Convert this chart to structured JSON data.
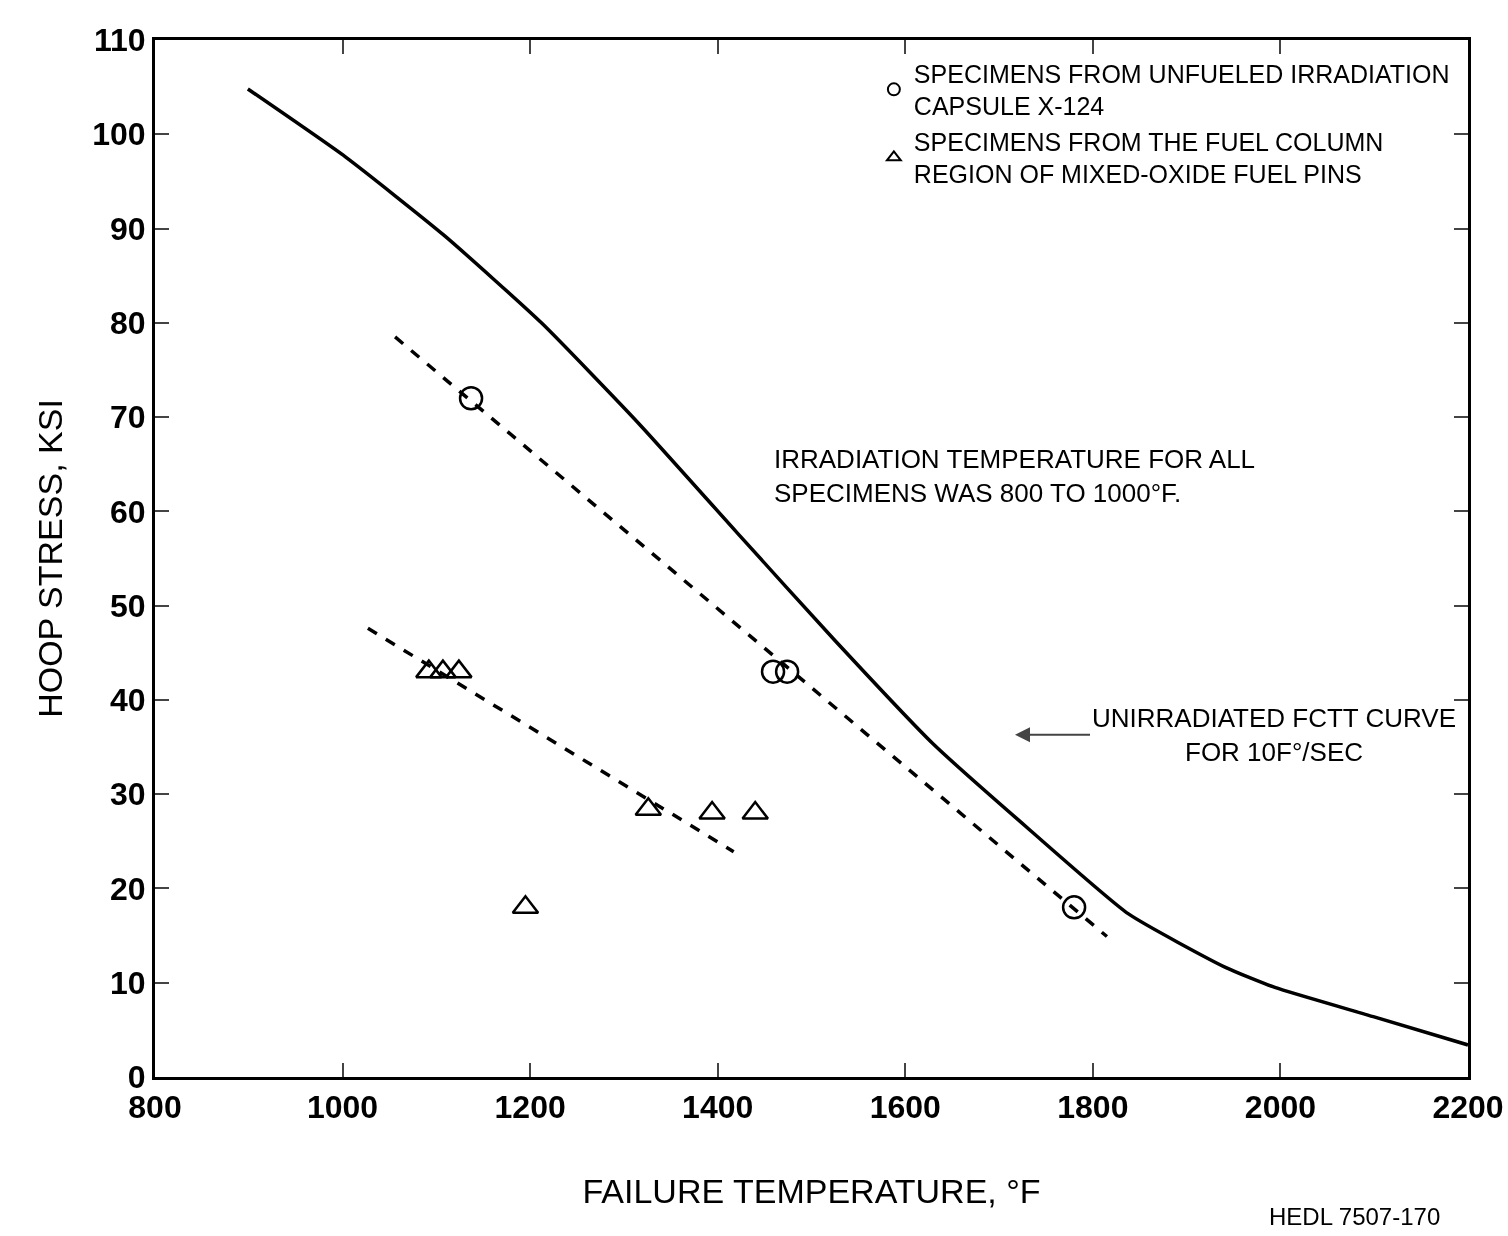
{
  "chart_data": {
    "type": "scatter",
    "xlabel": "FAILURE TEMPERATURE, °F",
    "ylabel": "HOOP STRESS, KSI",
    "xlim": [
      800,
      2200
    ],
    "xticks": [
      800,
      1000,
      1200,
      1400,
      1600,
      1800,
      2000,
      2200
    ],
    "ylim": [
      0,
      110
    ],
    "yticks": [
      0,
      10,
      20,
      30,
      40,
      50,
      60,
      70,
      80,
      90,
      100,
      110
    ],
    "grid": false,
    "legend": "top right",
    "series": [
      {
        "name": "SPECIMENS FROM UNFUELED IRRADIATION CAPSULE X-124",
        "type": "scatter",
        "marker": "circle",
        "color": "#000000",
        "x": [
          1137,
          1459,
          1474,
          1780
        ],
        "values": [
          72,
          43,
          43,
          18
        ]
      },
      {
        "name": "SPECIMENS FROM THE FUEL COLUMN REGION OF MIXED-OXIDE FUEL PINS",
        "type": "scatter",
        "marker": "triangle",
        "color": "#000000",
        "x": [
          1092,
          1107,
          1124,
          1195,
          1326,
          1394,
          1440
        ],
        "values": [
          43,
          43,
          43,
          18,
          28.4,
          28,
          28
        ]
      },
      {
        "type": "line",
        "line_style": "dashed",
        "color": "#000000",
        "x": [
          1056,
          1815
        ],
        "values": [
          78.5,
          14.9
        ]
      },
      {
        "type": "line",
        "line_style": "dashed",
        "color": "#000000",
        "x": [
          1027,
          1417
        ],
        "values": [
          47.6,
          23.9
        ]
      },
      {
        "type": "line",
        "line_style": "solid",
        "color": "#000000",
        "x": [
          899,
          1003,
          1108,
          1212,
          1316,
          1421,
          1525,
          1629,
          1734,
          1838,
          1942,
          1994,
          2099,
          2200
        ],
        "values": [
          104.8,
          97.6,
          89.3,
          80,
          69.3,
          57.7,
          46.3,
          35.4,
          26.1,
          17.3,
          11.6,
          9.5,
          6.4,
          3.4
        ]
      }
    ],
    "annotations": [
      "IRRADIATION TEMPERATURE FOR ALL SPECIMENS WAS 800 TO 1000°F.",
      "UNIRRADIATED FCTT CURVE FOR 10F°/SEC",
      "HEDL 7507-170"
    ]
  }
}
